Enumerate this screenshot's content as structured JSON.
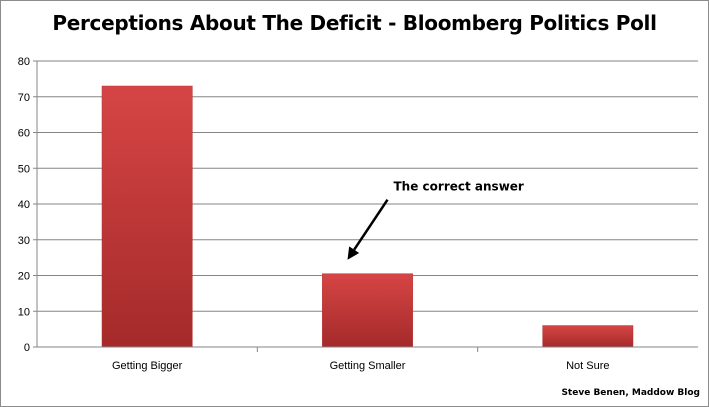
{
  "chart_data": {
    "type": "bar",
    "title": "Perceptions About The Deficit - Bloomberg Politics Poll",
    "categories": [
      "Getting Bigger",
      "Getting Smaller",
      "Not Sure"
    ],
    "values": [
      73,
      20.5,
      6
    ],
    "ylim": [
      0,
      80
    ],
    "yticks": [
      0,
      10,
      20,
      30,
      40,
      50,
      60,
      70,
      80
    ],
    "grid": true,
    "legend": "none",
    "bar_color": "#c83a3a",
    "annotation": {
      "text": "The correct answer",
      "target_category": "Getting Smaller"
    },
    "credit": "Steve Benen, Maddow Blog"
  }
}
